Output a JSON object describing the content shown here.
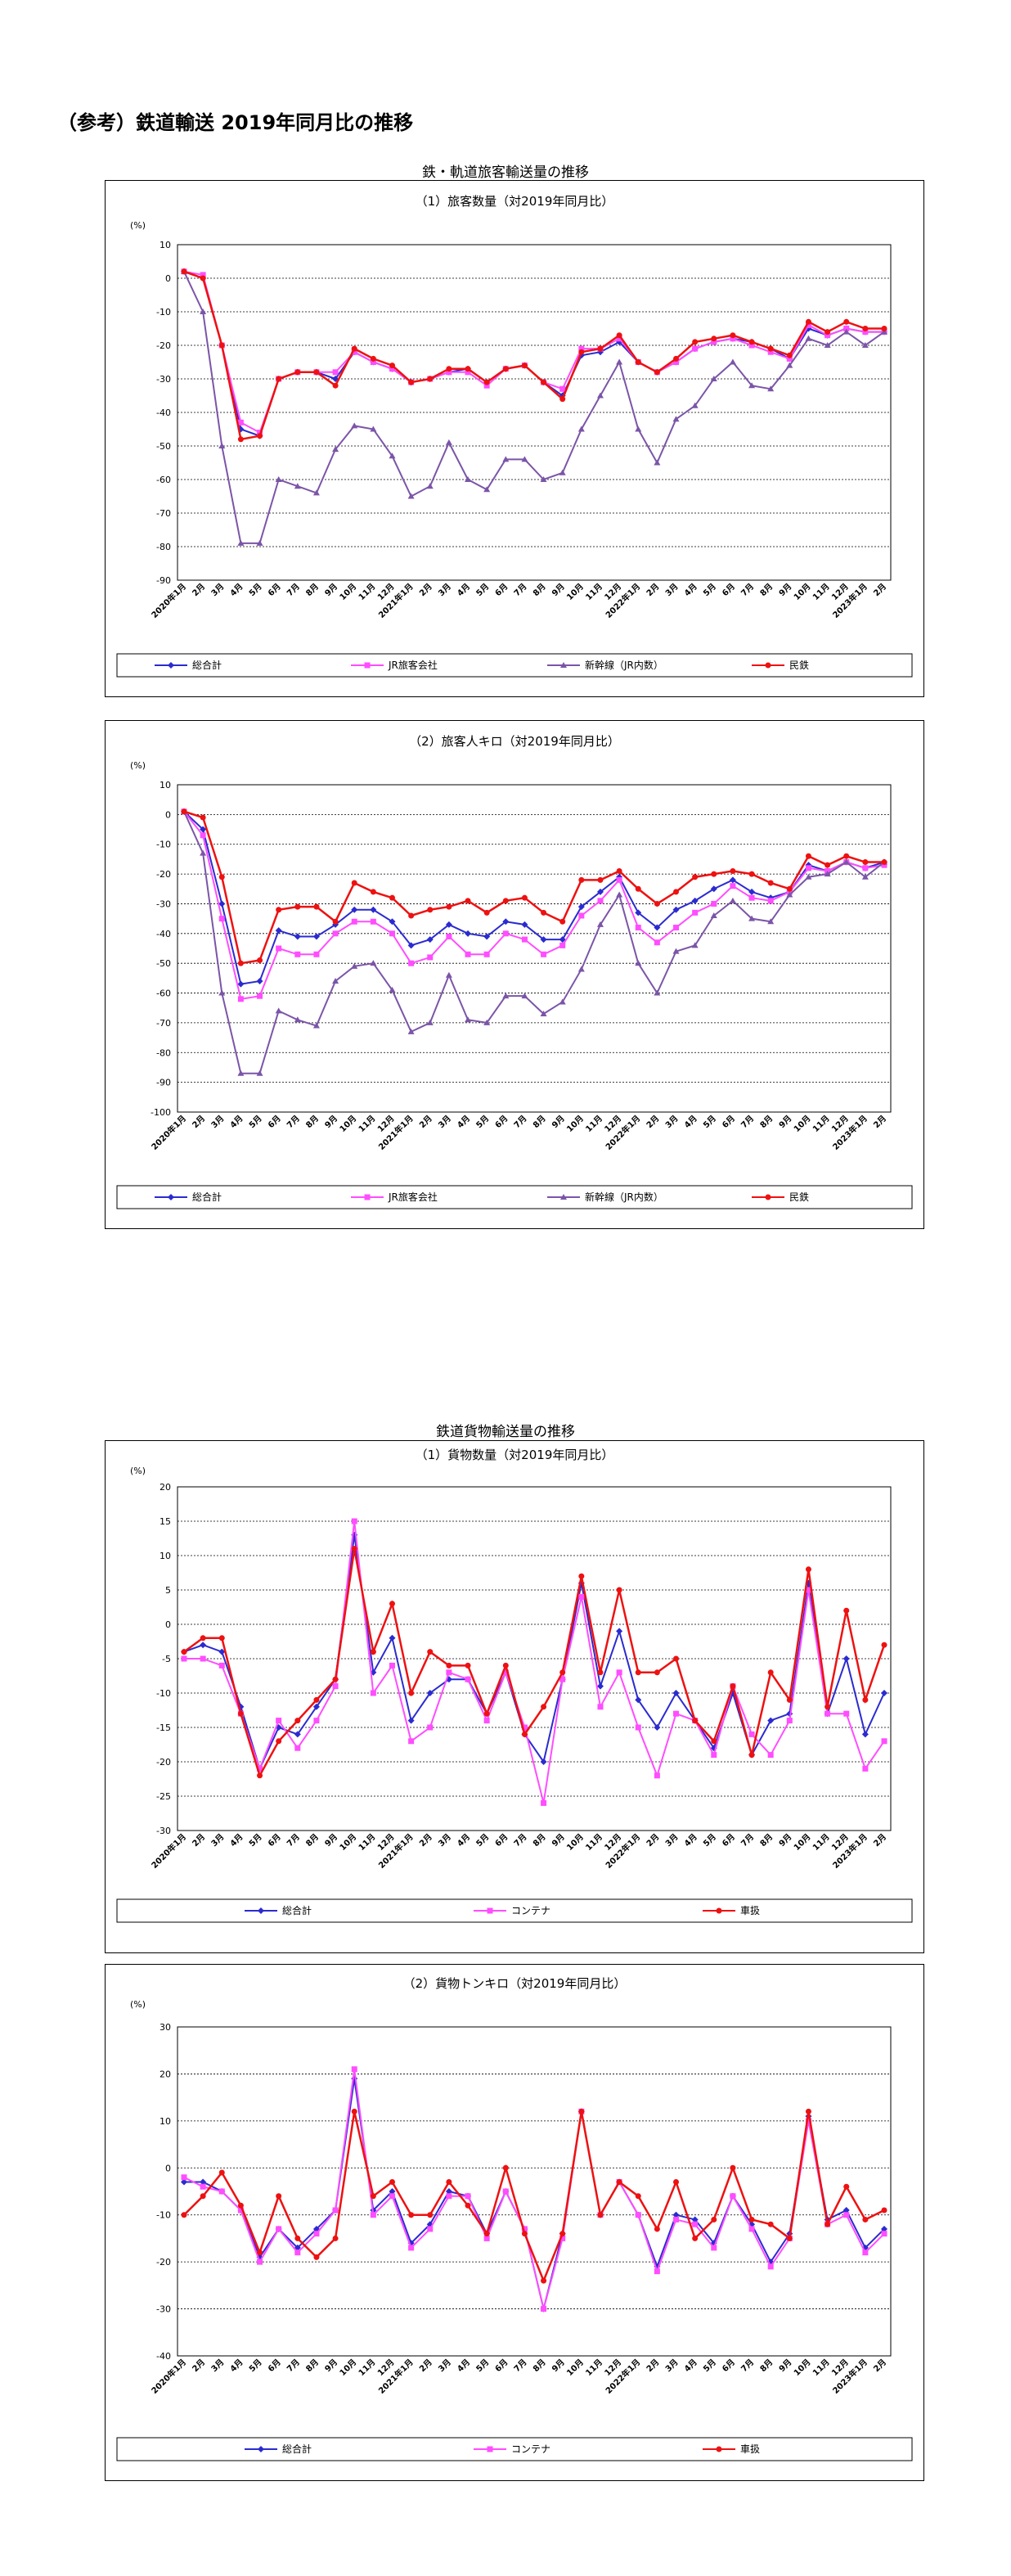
{
  "page_title": "（参考）鉄道輸送 2019年同月比の推移",
  "sections": [
    {
      "title": "鉄・軌道旅客輸送量の推移"
    },
    {
      "title": "鉄道貨物輸送量の推移"
    }
  ],
  "chart_data": [
    {
      "type": "line",
      "title": "（1）旅客数量（対2019年同月比）",
      "unit": "(%)",
      "ylim": [
        -90,
        10
      ],
      "yticks": [
        10,
        0,
        -10,
        -20,
        -30,
        -40,
        -50,
        -60,
        -70,
        -80,
        -90
      ],
      "categories": [
        "2020年1月",
        "2月",
        "3月",
        "4月",
        "5月",
        "6月",
        "7月",
        "8月",
        "9月",
        "10月",
        "11月",
        "12月",
        "2021年1月",
        "2月",
        "3月",
        "4月",
        "5月",
        "6月",
        "7月",
        "8月",
        "9月",
        "10月",
        "11月",
        "12月",
        "2022年1月",
        "2月",
        "3月",
        "4月",
        "5月",
        "6月",
        "7月",
        "8月",
        "9月",
        "10月",
        "11月",
        "12月",
        "2023年1月",
        "2月"
      ],
      "series": [
        {
          "name": "総合計",
          "color": "#2b2bd0",
          "marker": "diamond",
          "values": [
            2,
            0,
            -20,
            -45,
            -47,
            -30,
            -28,
            -28,
            -30,
            -22,
            -25,
            -27,
            -31,
            -30,
            -28,
            -27,
            -31,
            -27,
            -26,
            -31,
            -35,
            -23,
            -22,
            -19,
            -25,
            -28,
            -25,
            -21,
            -19,
            -18,
            -19,
            -21,
            -24,
            -15,
            -17,
            -15,
            -16,
            -16
          ]
        },
        {
          "name": "JR旅客会社",
          "color": "#ff4dff",
          "marker": "square",
          "values": [
            2,
            1,
            -20,
            -43,
            -46,
            -30,
            -28,
            -28,
            -28,
            -22,
            -25,
            -27,
            -31,
            -30,
            -28,
            -28,
            -32,
            -27,
            -26,
            -31,
            -33,
            -21,
            -21,
            -18,
            -25,
            -28,
            -25,
            -21,
            -19,
            -18,
            -20,
            -22,
            -24,
            -14,
            -17,
            -15,
            -16,
            -16
          ]
        },
        {
          "name": "新幹線（JR内数）",
          "color": "#7b55a8",
          "marker": "triangle",
          "values": [
            2,
            -10,
            -50,
            -79,
            -79,
            -60,
            -62,
            -64,
            -51,
            -44,
            -45,
            -53,
            -65,
            -62,
            -49,
            -60,
            -63,
            -54,
            -54,
            -60,
            -58,
            -45,
            -35,
            -25,
            -45,
            -55,
            -42,
            -38,
            -30,
            -25,
            -32,
            -33,
            -26,
            -18,
            -20,
            -16,
            -20,
            -16
          ]
        },
        {
          "name": "民鉄",
          "color": "#ee1111",
          "marker": "circle",
          "values": [
            2,
            0,
            -20,
            -48,
            -47,
            -30,
            -28,
            -28,
            -32,
            -21,
            -24,
            -26,
            -31,
            -30,
            -27,
            -27,
            -31,
            -27,
            -26,
            -31,
            -36,
            -22,
            -21,
            -17,
            -25,
            -28,
            -24,
            -19,
            -18,
            -17,
            -19,
            -21,
            -23,
            -13,
            -16,
            -13,
            -15,
            -15
          ]
        }
      ],
      "legend": "bottom"
    },
    {
      "type": "line",
      "title": "（2）旅客人キロ（対2019年同月比）",
      "unit": "(%)",
      "ylim": [
        -100,
        10
      ],
      "yticks": [
        10,
        0,
        -10,
        -20,
        -30,
        -40,
        -50,
        -60,
        -70,
        -80,
        -90,
        -100
      ],
      "categories": [
        "2020年1月",
        "2月",
        "3月",
        "4月",
        "5月",
        "6月",
        "7月",
        "8月",
        "9月",
        "10月",
        "11月",
        "12月",
        "2021年1月",
        "2月",
        "3月",
        "4月",
        "5月",
        "6月",
        "7月",
        "8月",
        "9月",
        "10月",
        "11月",
        "12月",
        "2022年1月",
        "2月",
        "3月",
        "4月",
        "5月",
        "6月",
        "7月",
        "8月",
        "9月",
        "10月",
        "11月",
        "12月",
        "2023年1月",
        "2月"
      ],
      "series": [
        {
          "name": "総合計",
          "color": "#2b2bd0",
          "marker": "diamond",
          "values": [
            1,
            -5,
            -30,
            -57,
            -56,
            -39,
            -41,
            -41,
            -37,
            -32,
            -32,
            -36,
            -44,
            -42,
            -37,
            -40,
            -41,
            -36,
            -37,
            -42,
            -42,
            -31,
            -26,
            -21,
            -33,
            -38,
            -32,
            -29,
            -25,
            -22,
            -26,
            -28,
            -26,
            -17,
            -19,
            -16,
            -18,
            -16
          ]
        },
        {
          "name": "JR旅客会社",
          "color": "#ff4dff",
          "marker": "square",
          "values": [
            1,
            -7,
            -35,
            -62,
            -61,
            -45,
            -47,
            -47,
            -40,
            -36,
            -36,
            -40,
            -50,
            -48,
            -41,
            -47,
            -47,
            -40,
            -42,
            -47,
            -44,
            -34,
            -29,
            -22,
            -38,
            -43,
            -38,
            -33,
            -30,
            -24,
            -28,
            -29,
            -26,
            -18,
            -19,
            -16,
            -18,
            -17
          ]
        },
        {
          "name": "新幹線（JR内数）",
          "color": "#7b55a8",
          "marker": "triangle",
          "values": [
            1,
            -13,
            -60,
            -87,
            -87,
            -66,
            -69,
            -71,
            -56,
            -51,
            -50,
            -59,
            -73,
            -70,
            -54,
            -69,
            -70,
            -61,
            -61,
            -67,
            -63,
            -52,
            -37,
            -27,
            -50,
            -60,
            -46,
            -44,
            -34,
            -29,
            -35,
            -36,
            -27,
            -21,
            -20,
            -16,
            -21,
            -16
          ]
        },
        {
          "name": "民鉄",
          "color": "#ee1111",
          "marker": "circle",
          "values": [
            1,
            -1,
            -21,
            -50,
            -49,
            -32,
            -31,
            -31,
            -36,
            -23,
            -26,
            -28,
            -34,
            -32,
            -31,
            -29,
            -33,
            -29,
            -28,
            -33,
            -36,
            -22,
            -22,
            -19,
            -25,
            -30,
            -26,
            -21,
            -20,
            -19,
            -20,
            -23,
            -25,
            -14,
            -17,
            -14,
            -16,
            -16
          ]
        }
      ],
      "legend": "bottom"
    },
    {
      "type": "line",
      "title": "（1）貨物数量（対2019年同月比）",
      "unit": "(%)",
      "ylim": [
        -30,
        20
      ],
      "yticks": [
        20,
        15,
        10,
        5,
        0,
        -5,
        -10,
        -15,
        -20,
        -25,
        -30
      ],
      "categories": [
        "2020年1月",
        "2月",
        "3月",
        "4月",
        "5月",
        "6月",
        "7月",
        "8月",
        "9月",
        "10月",
        "11月",
        "12月",
        "2021年1月",
        "2月",
        "3月",
        "4月",
        "5月",
        "6月",
        "7月",
        "8月",
        "9月",
        "10月",
        "11月",
        "12月",
        "2022年1月",
        "2月",
        "3月",
        "4月",
        "5月",
        "6月",
        "7月",
        "8月",
        "9月",
        "10月",
        "11月",
        "12月",
        "2023年1月",
        "2月"
      ],
      "series": [
        {
          "name": "総合計",
          "color": "#2b2bd0",
          "marker": "diamond",
          "values": [
            -4,
            -3,
            -4,
            -12,
            -21,
            -15,
            -16,
            -12,
            -8,
            13,
            -7,
            -2,
            -14,
            -10,
            -8,
            -8,
            -13,
            -7,
            -16,
            -20,
            -8,
            6,
            -9,
            -1,
            -11,
            -15,
            -10,
            -14,
            -18,
            -10,
            -19,
            -14,
            -13,
            6,
            -13,
            -5,
            -16,
            -10
          ]
        },
        {
          "name": "コンテナ",
          "color": "#ff4dff",
          "marker": "square",
          "values": [
            -5,
            -5,
            -6,
            -13,
            -21,
            -14,
            -18,
            -14,
            -9,
            15,
            -10,
            -6,
            -17,
            -15,
            -7,
            -8,
            -14,
            -7,
            -15,
            -26,
            -8,
            4,
            -12,
            -7,
            -15,
            -22,
            -13,
            -14,
            -19,
            -9,
            -16,
            -19,
            -14,
            5,
            -13,
            -13,
            -21,
            -17
          ]
        },
        {
          "name": "車扱",
          "color": "#ee1111",
          "marker": "circle",
          "values": [
            -4,
            -2,
            -2,
            -13,
            -22,
            -17,
            -14,
            -11,
            -8,
            11,
            -4,
            3,
            -10,
            -4,
            -6,
            -6,
            -13,
            -6,
            -16,
            -12,
            -7,
            7,
            -7,
            5,
            -7,
            -7,
            -5,
            -14,
            -17,
            -9,
            -19,
            -7,
            -11,
            8,
            -12,
            2,
            -11,
            -3
          ]
        }
      ],
      "legend": "bottom"
    },
    {
      "type": "line",
      "title": "（2）貨物トンキロ（対2019年同月比）",
      "unit": "(%)",
      "ylim": [
        -40,
        30
      ],
      "yticks": [
        30,
        20,
        10,
        0,
        -10,
        -20,
        -30,
        -40
      ],
      "categories": [
        "2020年1月",
        "2月",
        "3月",
        "4月",
        "5月",
        "6月",
        "7月",
        "8月",
        "9月",
        "10月",
        "11月",
        "12月",
        "2021年1月",
        "2月",
        "3月",
        "4月",
        "5月",
        "6月",
        "7月",
        "8月",
        "9月",
        "10月",
        "11月",
        "12月",
        "2022年1月",
        "2月",
        "3月",
        "4月",
        "5月",
        "6月",
        "7月",
        "8月",
        "9月",
        "10月",
        "11月",
        "12月",
        "2023年1月",
        "2月"
      ],
      "series": [
        {
          "name": "総合計",
          "color": "#2b2bd0",
          "marker": "diamond",
          "values": [
            -3,
            -3,
            -5,
            -9,
            -19,
            -13,
            -17,
            -13,
            -9,
            19,
            -9,
            -5,
            -16,
            -12,
            -5,
            -6,
            -14,
            -5,
            -13,
            -30,
            -14,
            12,
            -10,
            -3,
            -10,
            -21,
            -10,
            -11,
            -16,
            -6,
            -12,
            -20,
            -14,
            11,
            -11,
            -9,
            -17,
            -13
          ]
        },
        {
          "name": "コンテナ",
          "color": "#ff4dff",
          "marker": "square",
          "values": [
            -2,
            -4,
            -5,
            -9,
            -20,
            -13,
            -18,
            -14,
            -9,
            21,
            -10,
            -6,
            -17,
            -13,
            -6,
            -6,
            -15,
            -5,
            -13,
            -30,
            -15,
            12,
            -10,
            -3,
            -10,
            -22,
            -11,
            -12,
            -17,
            -6,
            -13,
            -21,
            -15,
            10,
            -12,
            -10,
            -18,
            -14
          ]
        },
        {
          "name": "車扱",
          "color": "#ee1111",
          "marker": "circle",
          "values": [
            -10,
            -6,
            -1,
            -8,
            -18,
            -6,
            -15,
            -19,
            -15,
            12,
            -6,
            -3,
            -10,
            -10,
            -3,
            -8,
            -14,
            0,
            -14,
            -24,
            -14,
            12,
            -10,
            -3,
            -6,
            -13,
            -3,
            -15,
            -11,
            0,
            -11,
            -12,
            -15,
            12,
            -12,
            -4,
            -11,
            -9
          ]
        }
      ],
      "legend": "bottom"
    }
  ]
}
